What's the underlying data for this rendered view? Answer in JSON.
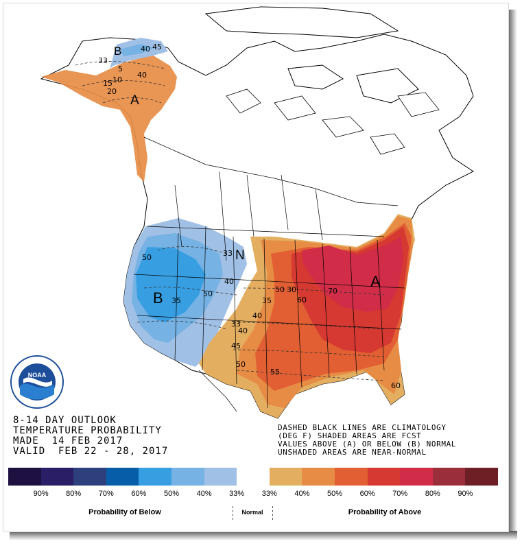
{
  "header_lines": [
    "8-14 DAY OUTLOOK",
    "TEMPERATURE PROBABILITY",
    "MADE  14 FEB 2017",
    "VALID  FEB 22 - 28, 2017"
  ],
  "note_lines": [
    "DASHED BLACK LINES ARE CLIMATOLOGY",
    "(DEG F) SHADED AREAS ARE FCST",
    "VALUES ABOVE (A) OR BELOW (B) NORMAL",
    "UNSHADED AREAS ARE NEAR-NORMAL"
  ],
  "logo": {
    "text": "NOAA",
    "ring_text": "NATIONAL OCEANIC AND ATMOSPHERIC ADMINISTRATION",
    "ring_text_bottom": "U.S. DEPARTMENT OF COMMERCE"
  },
  "map_labels": {
    "alaska_below": "B",
    "alaska_above": "A",
    "west_below": "B",
    "east_above": "A",
    "normal": "N"
  },
  "contours": {
    "alaska": [
      "40",
      "45",
      "33",
      "5",
      "40",
      "15",
      "20",
      "10"
    ],
    "conus": [
      "50",
      "33",
      "40",
      "35",
      "50",
      "30",
      "50",
      "60",
      "70",
      "35",
      "40",
      "33",
      "40",
      "45",
      "50",
      "55",
      "60"
    ]
  },
  "legend": {
    "colors": [
      "#1e1040",
      "#2a1f66",
      "#2d3f7c",
      "#075ea8",
      "#379ee2",
      "#76b2e4",
      "#a1c0e5",
      "#ffffff",
      "#e4ae61",
      "#e78c45",
      "#e15f33",
      "#d63931",
      "#d12d48",
      "#9a2f3b",
      "#6e1f26"
    ],
    "percent_labels": [
      "90%",
      "80%",
      "70%",
      "60%",
      "50%",
      "40%",
      "33%",
      "33%",
      "40%",
      "50%",
      "60%",
      "70%",
      "80%",
      "90%"
    ],
    "below_caption": "Probability of Below",
    "normal_caption": "Normal",
    "above_caption": "Probability of Above"
  }
}
